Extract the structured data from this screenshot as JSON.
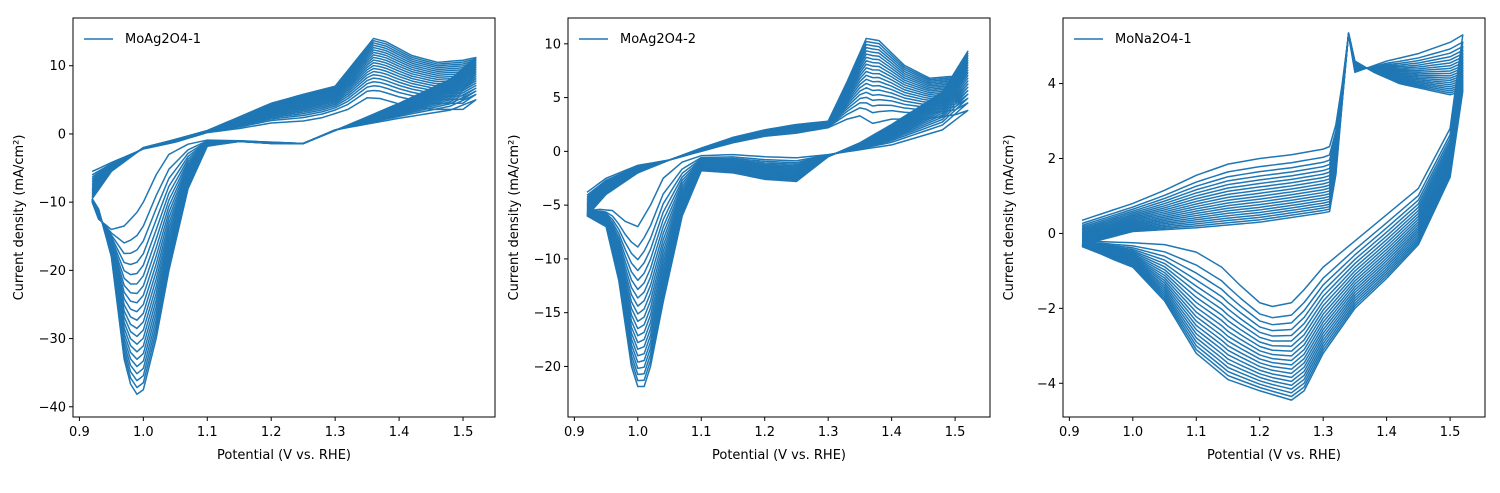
{
  "figure": {
    "background": "#ffffff",
    "line_color": "#1f77b4",
    "axis_color": "#000000"
  },
  "chart_data": [
    {
      "type": "line",
      "panel": "left",
      "title": "",
      "legend": {
        "label": "MoAg2O4-1",
        "placement": "top-left"
      },
      "xlabel": "Potential (V vs. RHE)",
      "ylabel": "Current density (mA/cm²)",
      "xlim": [
        0.89,
        1.55
      ],
      "ylim": [
        -41.5,
        17
      ],
      "xticks": [
        0.9,
        1.0,
        1.1,
        1.2,
        1.3,
        1.4,
        1.5
      ],
      "xtick_labels": [
        "0.9",
        "1.0",
        "1.1",
        "1.2",
        "1.3",
        "1.4",
        "1.5"
      ],
      "yticks": [
        -40,
        -30,
        -20,
        -10,
        0,
        10
      ],
      "ytick_labels": [
        "−40",
        "−30",
        "−20",
        "−10",
        "0",
        "10"
      ],
      "grid": false,
      "cycle_count": 20,
      "series": [
        {
          "cycle": "first",
          "anodic": [
            [
              0.92,
              -5.5
            ],
            [
              0.95,
              -4.2
            ],
            [
              1.0,
              -2.2
            ],
            [
              1.05,
              -1.2
            ],
            [
              1.1,
              0.2
            ],
            [
              1.15,
              0.8
            ],
            [
              1.2,
              1.6
            ],
            [
              1.25,
              1.9
            ],
            [
              1.28,
              2.4
            ],
            [
              1.32,
              3.6
            ],
            [
              1.35,
              5.3
            ],
            [
              1.37,
              5.2
            ],
            [
              1.4,
              4.4
            ],
            [
              1.45,
              3.6
            ],
            [
              1.5,
              3.6
            ],
            [
              1.52,
              5.0
            ]
          ],
          "cathodic": [
            [
              1.52,
              5.0
            ],
            [
              1.48,
              3.5
            ],
            [
              1.4,
              2.3
            ],
            [
              1.3,
              0.6
            ],
            [
              1.25,
              -1.4
            ],
            [
              1.2,
              -1.2
            ],
            [
              1.15,
              -1.0
            ],
            [
              1.1,
              -0.9
            ],
            [
              1.07,
              -1.5
            ],
            [
              1.04,
              -3.0
            ],
            [
              1.02,
              -6.0
            ],
            [
              1.0,
              -10.0
            ],
            [
              0.99,
              -11.5
            ],
            [
              0.97,
              -13.5
            ],
            [
              0.95,
              -14.0
            ],
            [
              0.93,
              -12.5
            ],
            [
              0.92,
              -10.0
            ]
          ]
        },
        {
          "cycle": "last",
          "anodic": [
            [
              0.92,
              -9.5
            ],
            [
              0.95,
              -5.5
            ],
            [
              1.0,
              -2.0
            ],
            [
              1.05,
              -0.8
            ],
            [
              1.1,
              0.5
            ],
            [
              1.15,
              2.5
            ],
            [
              1.2,
              4.5
            ],
            [
              1.25,
              5.8
            ],
            [
              1.3,
              7.0
            ],
            [
              1.33,
              10.5
            ],
            [
              1.36,
              14.0
            ],
            [
              1.38,
              13.5
            ],
            [
              1.42,
              11.5
            ],
            [
              1.46,
              10.5
            ],
            [
              1.5,
              10.8
            ],
            [
              1.52,
              11.2
            ]
          ],
          "cathodic": [
            [
              1.52,
              11.2
            ],
            [
              1.48,
              8.0
            ],
            [
              1.4,
              4.5
            ],
            [
              1.35,
              2.5
            ],
            [
              1.3,
              0.5
            ],
            [
              1.25,
              -1.4
            ],
            [
              1.2,
              -1.4
            ],
            [
              1.15,
              -1.1
            ],
            [
              1.1,
              -1.8
            ],
            [
              1.07,
              -8.0
            ],
            [
              1.04,
              -20.0
            ],
            [
              1.02,
              -30.0
            ],
            [
              1.0,
              -37.5
            ],
            [
              0.985,
              -38.5
            ],
            [
              0.97,
              -33.0
            ],
            [
              0.95,
              -18.0
            ],
            [
              0.93,
              -11.0
            ],
            [
              0.92,
              -9.5
            ]
          ]
        }
      ]
    },
    {
      "type": "line",
      "panel": "middle",
      "title": "",
      "legend": {
        "label": "MoAg2O4-2",
        "placement": "top-left"
      },
      "xlabel": "Potential (V vs. RHE)",
      "ylabel": "Current density (mA/cm²)",
      "xlim": [
        0.89,
        1.555
      ],
      "ylim": [
        -24.7,
        12.4
      ],
      "xticks": [
        0.9,
        1.0,
        1.1,
        1.2,
        1.3,
        1.4,
        1.5
      ],
      "xtick_labels": [
        "0.9",
        "1.0",
        "1.1",
        "1.2",
        "1.3",
        "1.4",
        "1.5"
      ],
      "yticks": [
        -20,
        -15,
        -10,
        -5,
        0,
        5,
        10
      ],
      "ytick_labels": [
        "−20",
        "−15",
        "−10",
        "−5",
        "0",
        "5",
        "10"
      ],
      "grid": false,
      "cycle_count": 20,
      "series": [
        {
          "cycle": "first",
          "anodic": [
            [
              0.92,
              -3.8
            ],
            [
              0.95,
              -2.5
            ],
            [
              1.0,
              -1.3
            ],
            [
              1.05,
              -0.8
            ],
            [
              1.1,
              0.0
            ],
            [
              1.15,
              0.8
            ],
            [
              1.2,
              1.4
            ],
            [
              1.25,
              1.7
            ],
            [
              1.3,
              2.2
            ],
            [
              1.33,
              3.0
            ],
            [
              1.35,
              3.3
            ],
            [
              1.37,
              2.6
            ],
            [
              1.4,
              3.0
            ],
            [
              1.45,
              3.0
            ],
            [
              1.5,
              3.4
            ],
            [
              1.52,
              3.8
            ]
          ],
          "cathodic": [
            [
              1.52,
              3.8
            ],
            [
              1.48,
              2.0
            ],
            [
              1.4,
              0.6
            ],
            [
              1.3,
              -0.3
            ],
            [
              1.25,
              -0.6
            ],
            [
              1.2,
              -0.5
            ],
            [
              1.15,
              -0.3
            ],
            [
              1.1,
              -0.4
            ],
            [
              1.07,
              -1.0
            ],
            [
              1.04,
              -2.5
            ],
            [
              1.02,
              -5.0
            ],
            [
              1.0,
              -7.0
            ],
            [
              0.98,
              -6.5
            ],
            [
              0.96,
              -5.5
            ],
            [
              0.94,
              -5.4
            ],
            [
              0.92,
              -5.5
            ]
          ]
        },
        {
          "cycle": "last",
          "anodic": [
            [
              0.92,
              -6.0
            ],
            [
              0.95,
              -4.0
            ],
            [
              1.0,
              -2.0
            ],
            [
              1.05,
              -0.8
            ],
            [
              1.1,
              0.3
            ],
            [
              1.15,
              1.3
            ],
            [
              1.2,
              2.0
            ],
            [
              1.25,
              2.5
            ],
            [
              1.3,
              2.8
            ],
            [
              1.33,
              6.5
            ],
            [
              1.36,
              10.5
            ],
            [
              1.38,
              10.3
            ],
            [
              1.42,
              8.0
            ],
            [
              1.46,
              6.8
            ],
            [
              1.5,
              7.0
            ],
            [
              1.52,
              9.3
            ]
          ],
          "cathodic": [
            [
              1.52,
              9.3
            ],
            [
              1.48,
              5.5
            ],
            [
              1.4,
              2.5
            ],
            [
              1.35,
              0.8
            ],
            [
              1.3,
              -0.5
            ],
            [
              1.25,
              -2.8
            ],
            [
              1.2,
              -2.6
            ],
            [
              1.15,
              -2.0
            ],
            [
              1.1,
              -1.8
            ],
            [
              1.07,
              -6.0
            ],
            [
              1.04,
              -14.0
            ],
            [
              1.02,
              -20.0
            ],
            [
              1.005,
              -22.8
            ],
            [
              0.99,
              -20.0
            ],
            [
              0.97,
              -12.0
            ],
            [
              0.95,
              -7.0
            ],
            [
              0.92,
              -6.0
            ]
          ]
        }
      ]
    },
    {
      "type": "line",
      "panel": "right",
      "title": "",
      "legend": {
        "label": "MoNa2O4-1",
        "placement": "top-left"
      },
      "xlabel": "Potential (V vs. RHE)",
      "ylabel": "Current density (mA/cm²)",
      "xlim": [
        0.89,
        1.555
      ],
      "ylim": [
        -4.9,
        5.75
      ],
      "xticks": [
        0.9,
        1.0,
        1.1,
        1.2,
        1.3,
        1.4,
        1.5
      ],
      "xtick_labels": [
        "0.9",
        "1.0",
        "1.1",
        "1.2",
        "1.3",
        "1.4",
        "1.5"
      ],
      "yticks": [
        -4,
        -2,
        0,
        2,
        4
      ],
      "ytick_labels": [
        "−4",
        "−2",
        "0",
        "2",
        "4"
      ],
      "grid": false,
      "cycle_count": 20,
      "series": [
        {
          "cycle": "first",
          "anodic": [
            [
              0.92,
              0.35
            ],
            [
              1.0,
              0.8
            ],
            [
              1.05,
              1.15
            ],
            [
              1.1,
              1.55
            ],
            [
              1.15,
              1.85
            ],
            [
              1.2,
              2.0
            ],
            [
              1.25,
              2.1
            ],
            [
              1.3,
              2.25
            ],
            [
              1.315,
              2.35
            ],
            [
              1.33,
              4.0
            ],
            [
              1.34,
              5.3
            ],
            [
              1.35,
              4.3
            ],
            [
              1.4,
              4.6
            ],
            [
              1.45,
              4.8
            ],
            [
              1.5,
              5.1
            ],
            [
              1.52,
              5.3
            ]
          ],
          "cathodic": [
            [
              1.52,
              5.3
            ],
            [
              1.5,
              2.8
            ],
            [
              1.45,
              1.2
            ],
            [
              1.4,
              0.5
            ],
            [
              1.35,
              -0.2
            ],
            [
              1.3,
              -0.9
            ],
            [
              1.27,
              -1.5
            ],
            [
              1.25,
              -1.85
            ],
            [
              1.22,
              -1.95
            ],
            [
              1.2,
              -1.85
            ],
            [
              1.17,
              -1.4
            ],
            [
              1.14,
              -0.9
            ],
            [
              1.1,
              -0.5
            ],
            [
              1.05,
              -0.3
            ],
            [
              1.0,
              -0.25
            ],
            [
              0.95,
              -0.22
            ],
            [
              0.92,
              -0.2
            ]
          ]
        },
        {
          "cycle": "last",
          "anodic": [
            [
              0.92,
              -0.3
            ],
            [
              1.0,
              0.05
            ],
            [
              1.1,
              0.15
            ],
            [
              1.2,
              0.3
            ],
            [
              1.3,
              0.55
            ],
            [
              1.315,
              0.6
            ],
            [
              1.33,
              3.5
            ],
            [
              1.34,
              5.35
            ],
            [
              1.35,
              4.6
            ],
            [
              1.38,
              4.3
            ],
            [
              1.42,
              4.0
            ],
            [
              1.46,
              3.85
            ],
            [
              1.5,
              3.7
            ],
            [
              1.52,
              3.8
            ]
          ],
          "cathodic": [
            [
              1.52,
              3.8
            ],
            [
              1.5,
              1.5
            ],
            [
              1.45,
              -0.3
            ],
            [
              1.4,
              -1.2
            ],
            [
              1.35,
              -2.0
            ],
            [
              1.3,
              -3.2
            ],
            [
              1.27,
              -4.2
            ],
            [
              1.25,
              -4.45
            ],
            [
              1.22,
              -4.3
            ],
            [
              1.2,
              -4.2
            ],
            [
              1.15,
              -3.9
            ],
            [
              1.1,
              -3.2
            ],
            [
              1.05,
              -1.8
            ],
            [
              1.0,
              -0.9
            ],
            [
              0.97,
              -0.7
            ],
            [
              0.95,
              -0.55
            ],
            [
              0.92,
              -0.35
            ]
          ]
        }
      ]
    }
  ]
}
